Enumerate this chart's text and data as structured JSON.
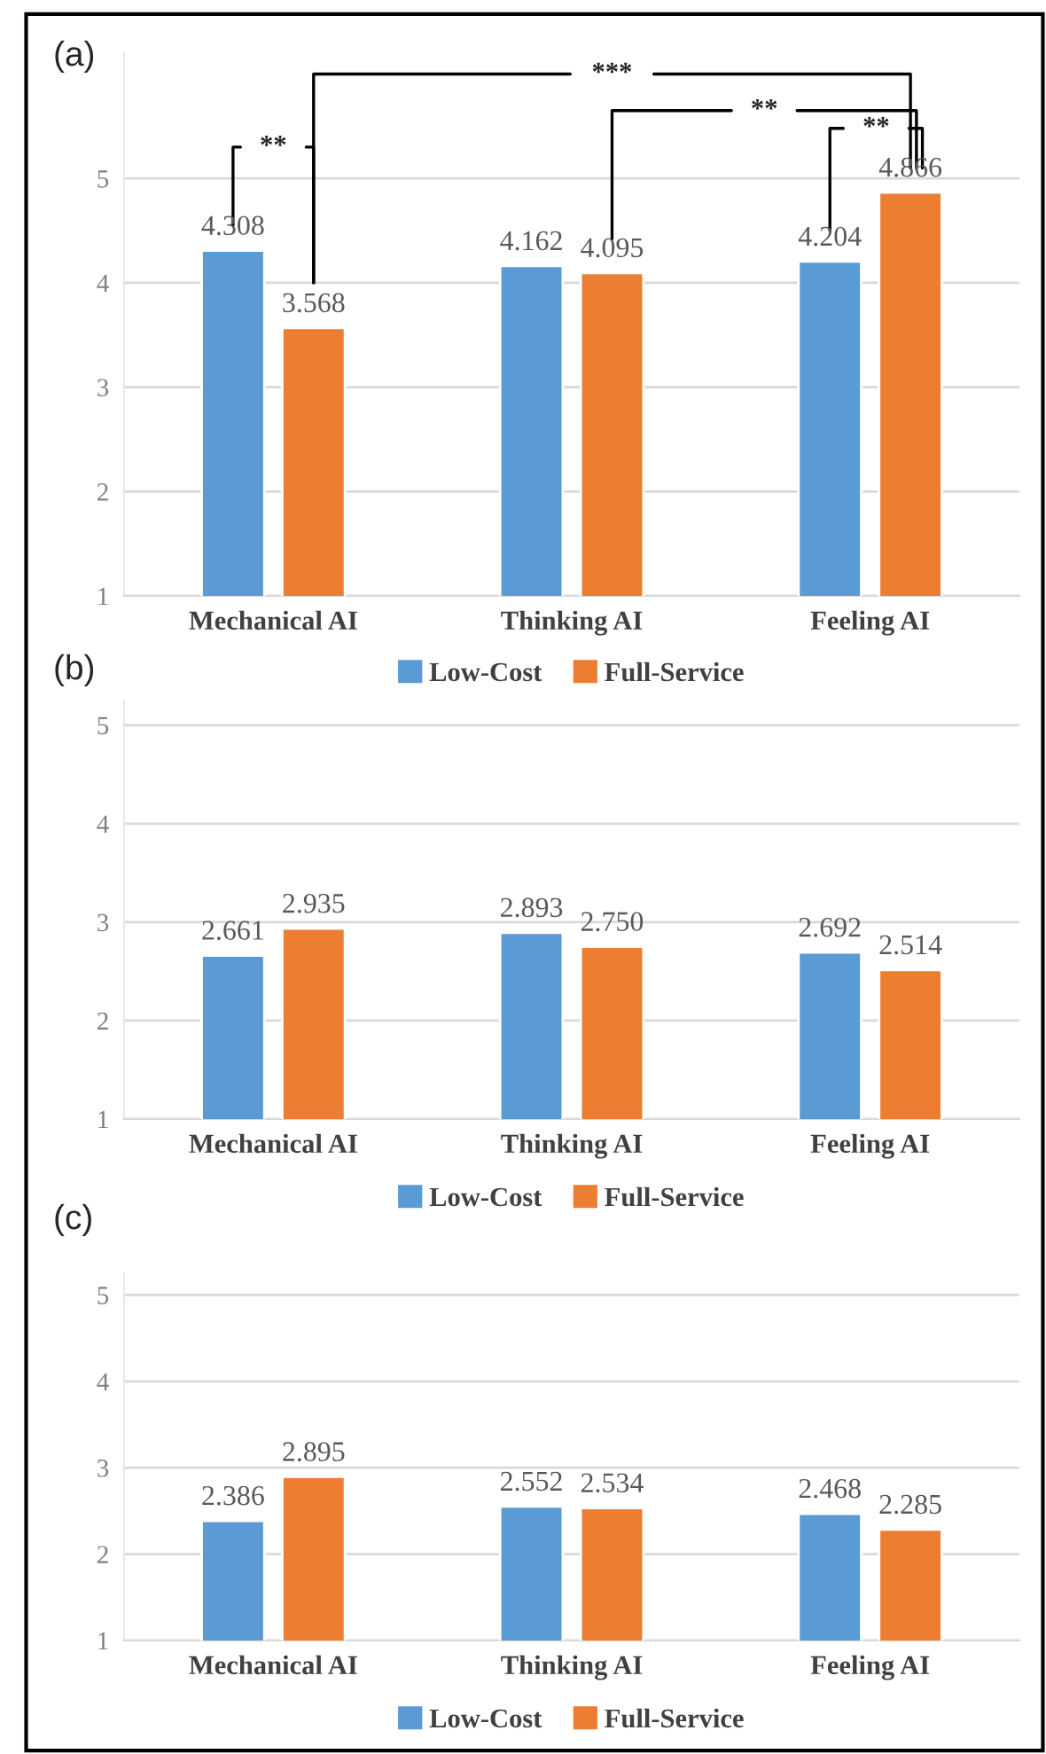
{
  "chart_data": [
    {
      "type": "bar",
      "title": "(a)",
      "categories": [
        "Mechanical AI",
        "Thinking AI",
        "Feeling AI"
      ],
      "series": [
        {
          "name": "Low-Cost",
          "color": "#5b9bd5",
          "values": [
            4.308,
            4.162,
            4.204
          ]
        },
        {
          "name": "Full-Service",
          "color": "#ed7d31",
          "values": [
            3.568,
            4.095,
            4.866
          ]
        }
      ],
      "ylim": [
        1,
        6.2
      ],
      "yticks": [
        1,
        2,
        3,
        4,
        5
      ],
      "grid": "y",
      "legend": "bottom",
      "data_labels": true,
      "annotations": [
        "**",
        "***",
        "**",
        "**"
      ]
    },
    {
      "type": "bar",
      "title": "(b)",
      "categories": [
        "Mechanical AI",
        "Thinking AI",
        "Feeling AI"
      ],
      "series": [
        {
          "name": "Low-Cost",
          "color": "#5b9bd5",
          "values": [
            2.661,
            2.893,
            2.692
          ]
        },
        {
          "name": "Full-Service",
          "color": "#ed7d31",
          "values": [
            2.935,
            2.75,
            2.514
          ]
        }
      ],
      "ylim": [
        1,
        5.25
      ],
      "yticks": [
        1,
        2,
        3,
        4,
        5
      ],
      "grid": "y",
      "legend": "bottom",
      "value_labels": [
        [
          "2.661",
          "2.893",
          "2.692"
        ],
        [
          "2.935",
          "2.750",
          "2.514"
        ]
      ]
    },
    {
      "type": "bar",
      "title": "(c)",
      "categories": [
        "Mechanical AI",
        "Thinking AI",
        "Feeling AI"
      ],
      "series": [
        {
          "name": "Low-Cost",
          "color": "#5b9bd5",
          "values": [
            2.386,
            2.552,
            2.468
          ]
        },
        {
          "name": "Full-Service",
          "color": "#ed7d31",
          "values": [
            2.895,
            2.534,
            2.285
          ]
        }
      ],
      "ylim": [
        1,
        5.25
      ],
      "yticks": [
        1,
        2,
        3,
        4,
        5
      ],
      "grid": "y",
      "legend": "bottom",
      "data_labels": true
    }
  ]
}
